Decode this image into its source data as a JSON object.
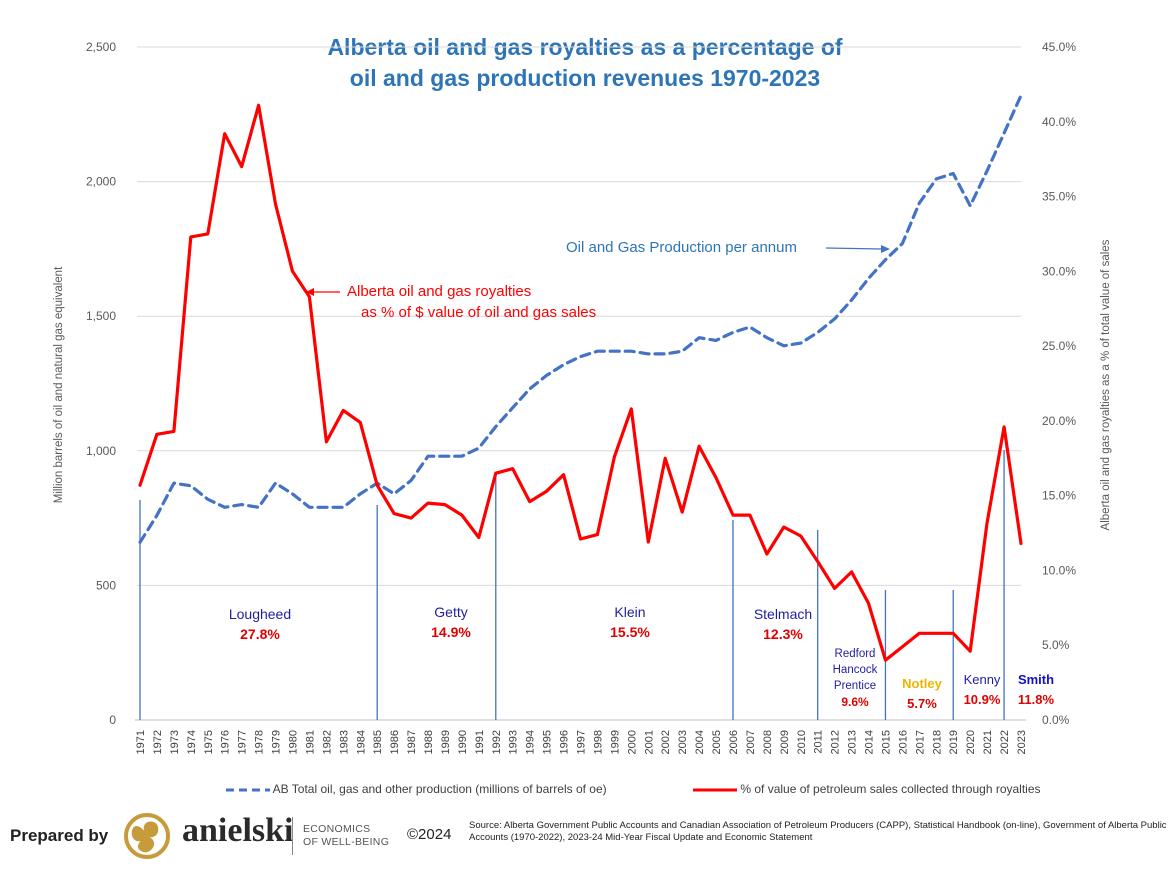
{
  "chart_data": {
    "type": "line",
    "title_line1": "Alberta oil and gas royalties as a percentage of",
    "title_line2": "oil and gas production revenues 1970-2023",
    "ylabel_left": "Million barrels of oil and natural gas equivalent",
    "ylabel_right": "Alberta oil and gas royalties as a % of total value of sales",
    "y_left_range": [
      0,
      2500
    ],
    "y_left_ticks": [
      "0",
      "500",
      "1,000",
      "1,500",
      "2,000",
      "2,500"
    ],
    "y_right_range": [
      0,
      45
    ],
    "y_right_ticks": [
      "0.0%",
      "5.0%",
      "10.0%",
      "15.0%",
      "20.0%",
      "25.0%",
      "30.0%",
      "35.0%",
      "40.0%",
      "45.0%"
    ],
    "x": [
      "1971",
      "1972",
      "1973",
      "1974",
      "1975",
      "1976",
      "1977",
      "1978",
      "1979",
      "1980",
      "1981",
      "1982",
      "1983",
      "1984",
      "1985",
      "1986",
      "1987",
      "1988",
      "1989",
      "1990",
      "1991",
      "1992",
      "1993",
      "1994",
      "1995",
      "1996",
      "1997",
      "1998",
      "1999",
      "2000",
      "2001",
      "2002",
      "2003",
      "2004",
      "2005",
      "2006",
      "2007",
      "2008",
      "2009",
      "2010",
      "2011",
      "2012",
      "2013",
      "2014",
      "2015",
      "2016",
      "2017",
      "2018",
      "2019",
      "2020",
      "2021",
      "2022",
      "2023"
    ],
    "series": [
      {
        "name": "AB Total oil, gas and other production (millions of barrels of oe)",
        "axis": "left",
        "color": "#4472c4",
        "style": "dashed",
        "values": [
          660,
          760,
          880,
          870,
          820,
          790,
          800,
          790,
          880,
          840,
          790,
          790,
          790,
          840,
          880,
          840,
          890,
          980,
          980,
          980,
          1010,
          1090,
          1160,
          1230,
          1280,
          1320,
          1350,
          1370,
          1370,
          1370,
          1360,
          1360,
          1370,
          1420,
          1410,
          1440,
          1460,
          1420,
          1390,
          1400,
          1440,
          1490,
          1560,
          1640,
          1710,
          1770,
          1920,
          2010,
          2030,
          1910,
          2040,
          2180,
          2320
        ]
      },
      {
        "name": "% of value of petroleum sales collected through royalties",
        "axis": "right",
        "color": "#ff0000",
        "style": "solid",
        "values": [
          15.7,
          19.1,
          19.3,
          32.3,
          32.5,
          39.2,
          37.0,
          41.1,
          34.5,
          30.0,
          28.3,
          18.6,
          20.7,
          19.9,
          15.7,
          13.8,
          13.5,
          14.5,
          14.4,
          13.7,
          12.2,
          16.5,
          16.8,
          14.6,
          15.3,
          16.4,
          12.1,
          12.4,
          17.6,
          20.8,
          11.9,
          17.5,
          13.9,
          18.3,
          16.2,
          13.7,
          13.7,
          11.1,
          12.9,
          12.3,
          10.6,
          8.8,
          9.9,
          7.8,
          4.0,
          4.9,
          5.8,
          5.8,
          5.8,
          4.6,
          13.2,
          19.6,
          11.8
        ]
      }
    ],
    "annotations": {
      "royalty_label_line1": "Alberta oil and gas royalties",
      "royalty_label_line2": "as % of $ value of oil and gas sales",
      "production_label": "Oil and Gas Production per annum"
    },
    "eras": [
      {
        "name": "Lougheed",
        "value": "27.8%",
        "name_color": "#1f1fa0"
      },
      {
        "name": "Getty",
        "value": "14.9%",
        "name_color": "#1f1fa0"
      },
      {
        "name": "Klein",
        "value": "15.5%",
        "name_color": "#1f1fa0"
      },
      {
        "name": "Stelmach",
        "value": "12.3%",
        "name_color": "#1f1fa0"
      },
      {
        "name": "Redford",
        "name2": "Hancock",
        "name3": "Prentice",
        "value": "9.6%",
        "name_color": "#1f1fa0"
      },
      {
        "name": "Notley",
        "value": "5.7%",
        "name_color": "#f0b400"
      },
      {
        "name": "Kenny",
        "value": "10.9%",
        "name_color": "#1f1fa0"
      },
      {
        "name": "Smith",
        "value": "11.8%",
        "name_color": "#1010d0"
      }
    ]
  },
  "legend": {
    "production": "AB Total oil, gas and other production (millions of barrels of oe)",
    "royalties": "% of value of petroleum sales collected through royalties"
  },
  "footer": {
    "prepared_by": "Prepared by",
    "brand": "anielski",
    "tagline1": "ECONOMICS",
    "tagline2": "OF WELL-BEING",
    "copyright": "©2024",
    "source": "Source: Alberta Government Public Accounts and Canadian Association of Petroleum Producers (CAPP),  Statistical Handbook (on-line), Government of Alberta Public Accounts (1970-2022), 2023-24 Mid-Year Fiscal Update and Economic Statement"
  },
  "colors": {
    "title": "#2e75b6",
    "production_line": "#4472c4",
    "royalty_line": "#ff0000",
    "era_value": "#e00000",
    "logo": "#c79a3c"
  }
}
